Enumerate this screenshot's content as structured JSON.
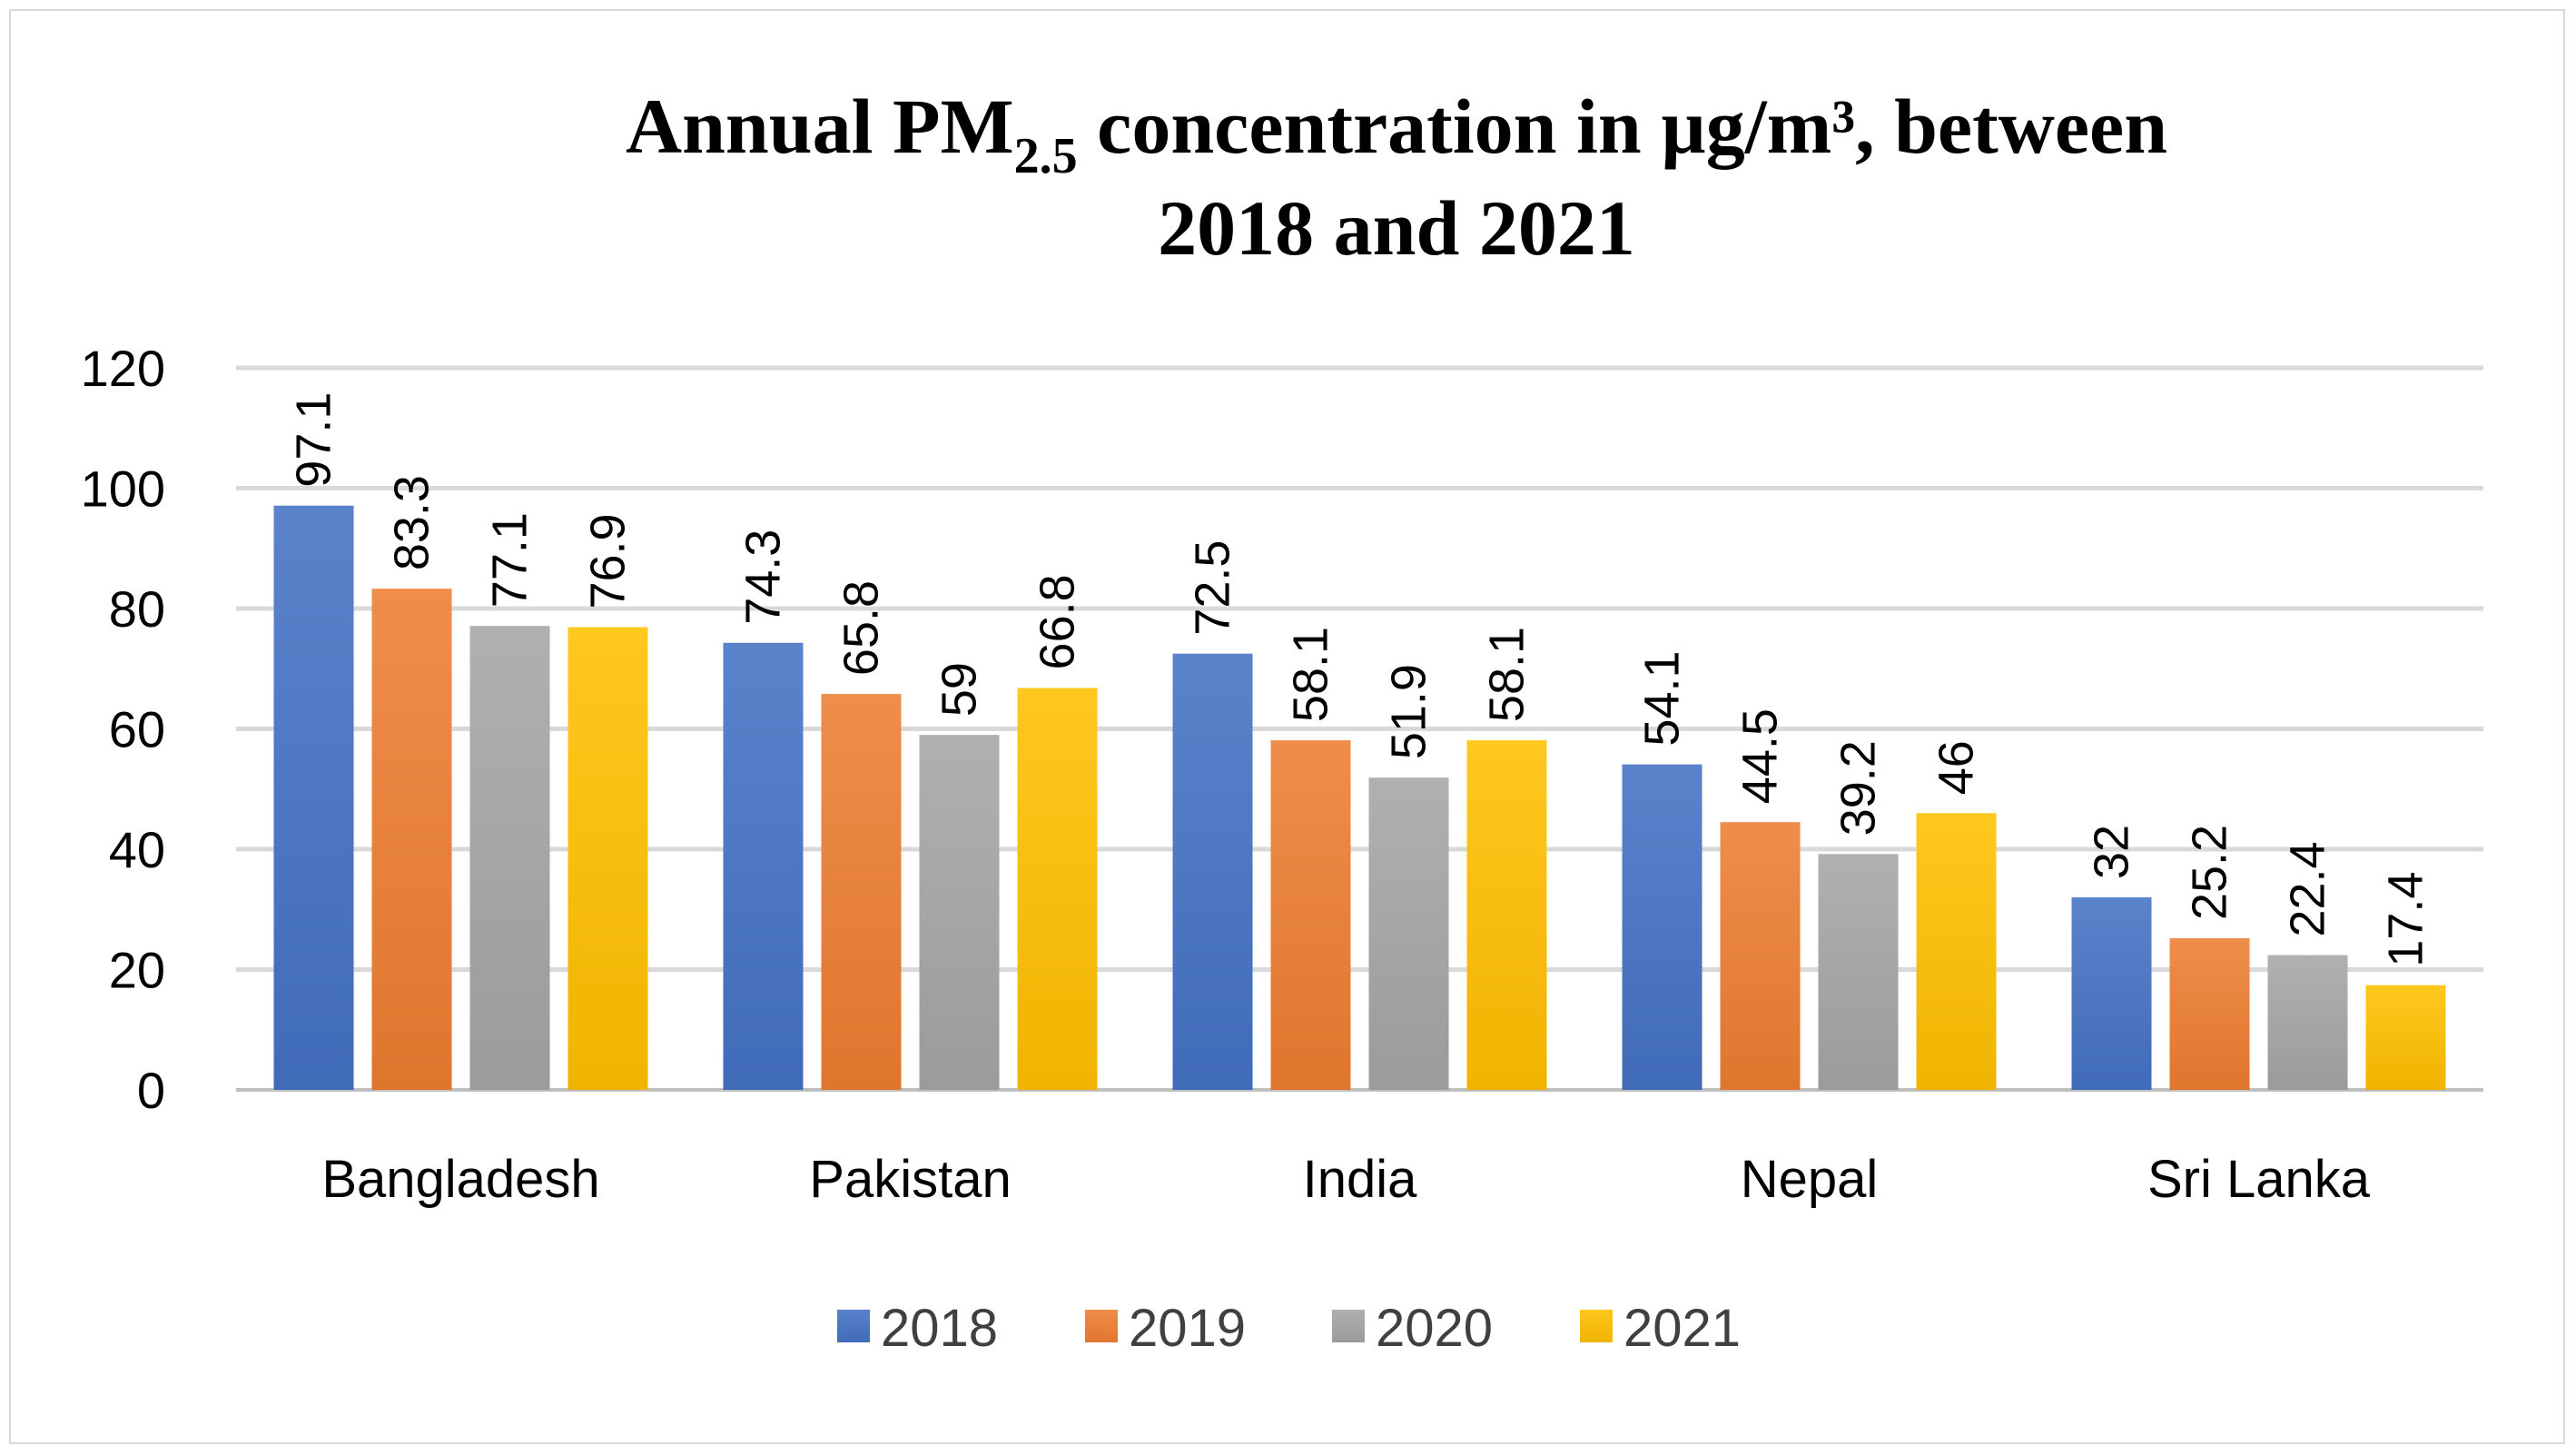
{
  "chart_data": {
    "type": "bar",
    "title": "Annual PM",
    "title_subscript": "2.5",
    "title_rest": " concentration in µg/m³, between",
    "title_line2": "2018 and 2021",
    "xlabel": "",
    "ylabel": "",
    "ylim": [
      0,
      120
    ],
    "yticks": [
      "0",
      "20",
      "40",
      "60",
      "80",
      "100",
      "120"
    ],
    "grid": true,
    "legend_position": "bottom",
    "categories": [
      "Bangladesh",
      "Pakistan",
      "India",
      "Nepal",
      "Sri Lanka"
    ],
    "series": [
      {
        "name": "2018",
        "color": "#4472c4",
        "values": [
          97.1,
          74.3,
          72.5,
          54.1,
          32
        ],
        "labels": [
          "97.1",
          "74.3",
          "72.5",
          "54.1",
          "32"
        ]
      },
      {
        "name": "2019",
        "color": "#ed7d31",
        "values": [
          83.3,
          65.8,
          58.1,
          44.5,
          25.2
        ],
        "labels": [
          "83.3",
          "65.8",
          "58.1",
          "44.5",
          "25.2"
        ]
      },
      {
        "name": "2020",
        "color": "#a5a5a5",
        "values": [
          77.1,
          59,
          51.9,
          39.2,
          22.4
        ],
        "labels": [
          "77.1",
          "59",
          "51.9",
          "39.2",
          "22.4"
        ]
      },
      {
        "name": "2021",
        "color": "#ffc000",
        "values": [
          76.9,
          66.8,
          58.1,
          46,
          17.4
        ],
        "labels": [
          "76.9",
          "66.8",
          "58.1",
          "46",
          "17.4"
        ]
      }
    ]
  }
}
